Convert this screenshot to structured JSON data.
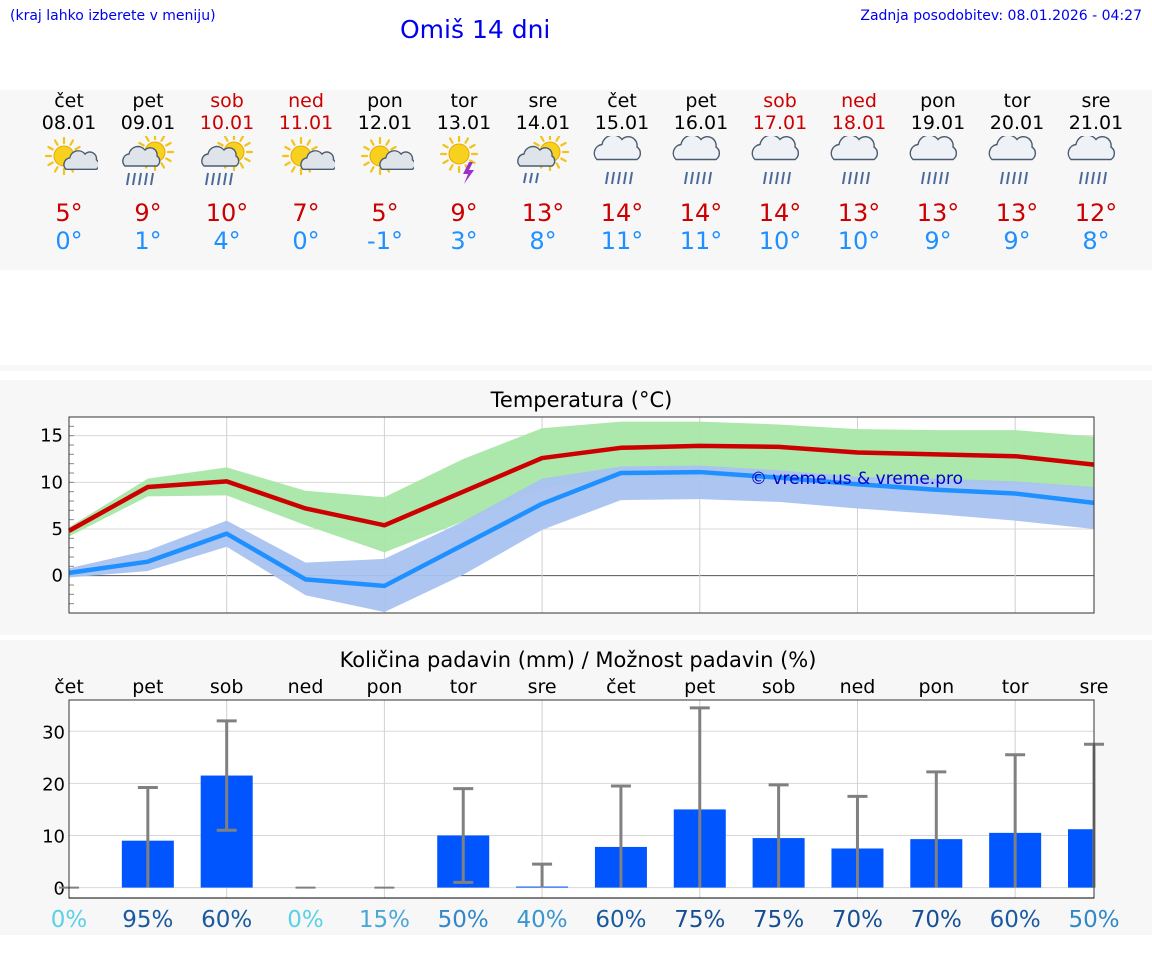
{
  "header": {
    "note": "(kraj lahko izberete v meniju)",
    "title": "Omiš 14 dni",
    "updated": "Zadnja posodobitev: 08.01.2026 - 04:27"
  },
  "colors": {
    "max_temp": "#cc0000",
    "min_temp": "#1e90ff",
    "max_band": "#a8e6a8",
    "min_band": "#a9c2f0",
    "bar": "#0055ff",
    "whisker": "#808080"
  },
  "days": [
    {
      "name": "čet",
      "date": "08.01",
      "weekend": false,
      "icon": "sun-cloud-icon",
      "tmax": "5°",
      "tmin": "0°"
    },
    {
      "name": "pet",
      "date": "09.01",
      "weekend": false,
      "icon": "sun-cloud-rain-icon",
      "tmax": "9°",
      "tmin": "1°"
    },
    {
      "name": "sob",
      "date": "10.01",
      "weekend": true,
      "icon": "sun-cloud-rain-icon",
      "tmax": "10°",
      "tmin": "4°"
    },
    {
      "name": "ned",
      "date": "11.01",
      "weekend": true,
      "icon": "sun-cloud-icon",
      "tmax": "7°",
      "tmin": "0°"
    },
    {
      "name": "pon",
      "date": "12.01",
      "weekend": false,
      "icon": "sun-cloud-icon",
      "tmax": "5°",
      "tmin": "-1°"
    },
    {
      "name": "tor",
      "date": "13.01",
      "weekend": false,
      "icon": "sun-lightning-icon",
      "tmax": "9°",
      "tmin": "3°"
    },
    {
      "name": "sre",
      "date": "14.01",
      "weekend": false,
      "icon": "sun-cloud-light-rain-icon",
      "tmax": "13°",
      "tmin": "8°"
    },
    {
      "name": "čet",
      "date": "15.01",
      "weekend": false,
      "icon": "cloud-rain-icon",
      "tmax": "14°",
      "tmin": "11°"
    },
    {
      "name": "pet",
      "date": "16.01",
      "weekend": false,
      "icon": "cloud-rain-icon",
      "tmax": "14°",
      "tmin": "11°"
    },
    {
      "name": "sob",
      "date": "17.01",
      "weekend": true,
      "icon": "cloud-rain-icon",
      "tmax": "14°",
      "tmin": "10°"
    },
    {
      "name": "ned",
      "date": "18.01",
      "weekend": true,
      "icon": "cloud-rain-icon",
      "tmax": "13°",
      "tmin": "10°"
    },
    {
      "name": "pon",
      "date": "19.01",
      "weekend": false,
      "icon": "cloud-rain-icon",
      "tmax": "13°",
      "tmin": "9°"
    },
    {
      "name": "tor",
      "date": "20.01",
      "weekend": false,
      "icon": "cloud-rain-icon",
      "tmax": "13°",
      "tmin": "9°"
    },
    {
      "name": "sre",
      "date": "21.01",
      "weekend": false,
      "icon": "cloud-rain-icon",
      "tmax": "12°",
      "tmin": "8°"
    }
  ],
  "chart_data": [
    {
      "type": "line",
      "title": "Temperatura (°C)",
      "watermark": "© vreme.us & vreme.pro",
      "yticks": [
        0,
        5,
        10,
        15
      ],
      "ylim": [
        -4,
        17
      ],
      "x": [
        0,
        1,
        2,
        3,
        4,
        5,
        6,
        7,
        8,
        9,
        10,
        11,
        12,
        13
      ],
      "series": [
        {
          "name": "max",
          "values": [
            4.8,
            9.5,
            10.1,
            7.2,
            5.4,
            9.0,
            12.6,
            13.7,
            13.9,
            13.8,
            13.2,
            13.0,
            12.8,
            11.9
          ]
        },
        {
          "name": "min",
          "values": [
            0.3,
            1.5,
            4.5,
            -0.4,
            -1.1,
            3.3,
            7.7,
            11.0,
            11.1,
            10.5,
            9.8,
            9.2,
            8.8,
            7.8
          ]
        }
      ],
      "bands": [
        {
          "name": "max_range",
          "upper": [
            5.2,
            10.4,
            11.6,
            9.1,
            8.4,
            12.5,
            15.8,
            16.5,
            16.5,
            16.2,
            15.7,
            15.6,
            15.6,
            14.9
          ],
          "lower": [
            4.2,
            8.5,
            8.6,
            5.4,
            2.5,
            5.8,
            9.4,
            10.5,
            10.5,
            10.5,
            10.2,
            10.0,
            9.9,
            9.4
          ]
        },
        {
          "name": "min_range",
          "upper": [
            0.8,
            2.7,
            5.9,
            1.4,
            1.8,
            5.8,
            10.4,
            11.7,
            11.8,
            11.3,
            10.6,
            10.4,
            10.1,
            9.5
          ]
        },
        {
          "name": "min_range_lower",
          "values": [
            -0.2,
            0.5,
            3.1,
            -2.1,
            -3.9,
            0.1,
            4.9,
            8.1,
            8.2,
            7.9,
            7.2,
            6.6,
            5.9,
            5.0
          ]
        }
      ]
    },
    {
      "type": "bar",
      "title": "Količina padavin (mm) / Možnost padavin (%)",
      "categories": [
        "čet",
        "pet",
        "sob",
        "ned",
        "pon",
        "tor",
        "sre",
        "čet",
        "pet",
        "sob",
        "ned",
        "pon",
        "tor",
        "sre"
      ],
      "yticks": [
        0,
        10,
        20,
        30
      ],
      "ylim": [
        -2,
        36
      ],
      "values": [
        0,
        9,
        21.5,
        0,
        0,
        10,
        0.2,
        7.8,
        15,
        9.5,
        7.5,
        9.3,
        10.5,
        11.2
      ],
      "err_high": [
        0,
        19.2,
        32,
        0,
        0,
        19,
        4.5,
        19.5,
        34.5,
        19.7,
        17.5,
        22.2,
        25.5,
        27.5
      ],
      "err_low": [
        0,
        0,
        11,
        0,
        0,
        1,
        0,
        0,
        0,
        0,
        0,
        0,
        0,
        0
      ],
      "chance": [
        "0%",
        "95%",
        "60%",
        "0%",
        "15%",
        "50%",
        "40%",
        "60%",
        "75%",
        "75%",
        "70%",
        "70%",
        "60%",
        "50%"
      ],
      "chance_colors": [
        "#5bd1e6",
        "#1a5aa0",
        "#1a5aa0",
        "#5bd1e6",
        "#4aa7d6",
        "#3187c8",
        "#3b96d0",
        "#1a5aa0",
        "#154f92",
        "#154f92",
        "#164f94",
        "#164f94",
        "#1a5aa0",
        "#3187c8"
      ]
    }
  ]
}
